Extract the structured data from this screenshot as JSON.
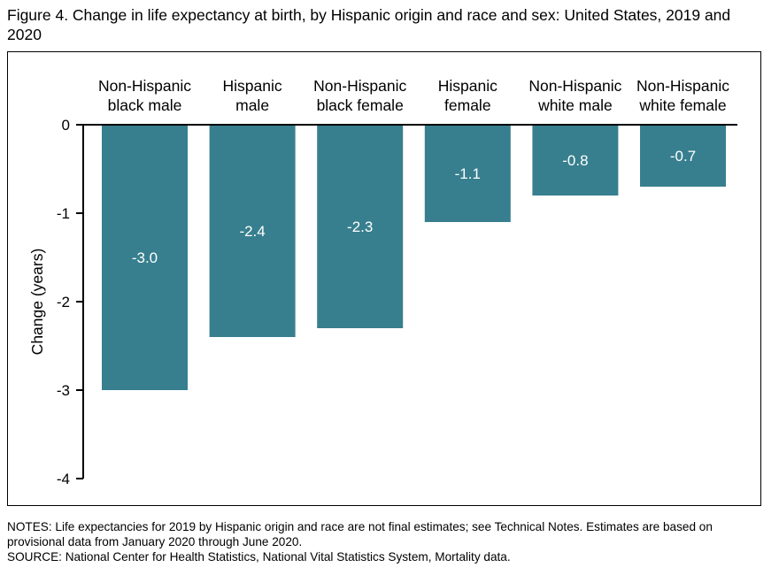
{
  "figure": {
    "title": "Figure 4. Change in life expectancy at birth, by Hispanic origin and race and sex: United States, 2019 and 2020",
    "notes": "NOTES: Life expectancies for 2019 by Hispanic origin and race are not final estimates; see Technical Notes. Estimates are based on provisional data from January 2020 through June 2020.",
    "source": "SOURCE: National Center for Health Statistics, National Vital Statistics System, Mortality data."
  },
  "chart_data": {
    "type": "bar",
    "title": "Figure 4. Change in life expectancy at birth, by Hispanic origin and race and sex: United States, 2019 and 2020",
    "xlabel": "",
    "ylabel": "Change (years)",
    "categories": [
      [
        "Non-Hispanic",
        "black male"
      ],
      [
        "Hispanic",
        "male"
      ],
      [
        "Non-Hispanic",
        "black female"
      ],
      [
        "Hispanic",
        "female"
      ],
      [
        "Non-Hispanic",
        "white male"
      ],
      [
        "Non-Hispanic",
        "white female"
      ]
    ],
    "values": [
      -3.0,
      -2.4,
      -2.3,
      -1.1,
      -0.8,
      -0.7
    ],
    "value_labels": [
      "-3.0",
      "-2.4",
      "-2.3",
      "-1.1",
      "-0.8",
      "-0.7"
    ],
    "ylim": [
      -4,
      0
    ],
    "yticks": [
      0,
      -1,
      -2,
      -3,
      -4
    ],
    "ytick_labels": [
      "0",
      "-1",
      "-2",
      "-3",
      "-4"
    ],
    "category_axis_position": "top",
    "grid": false,
    "legend": "none",
    "bar_color": "#377f8e",
    "value_label_color": "#ffffff"
  }
}
